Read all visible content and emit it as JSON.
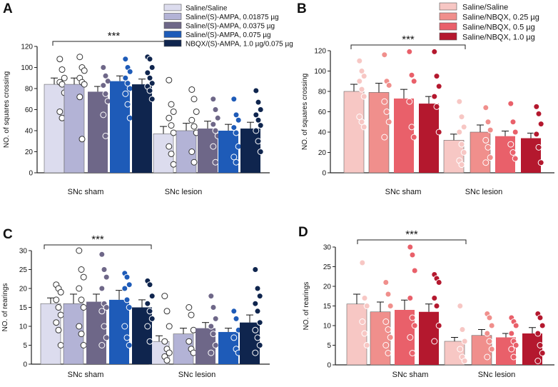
{
  "figure": {
    "legend_a": [
      "Saline/Saline",
      "Saline/(S)-AMPA, 0.01875 µg",
      "Saline/(S)-AMPA, 0.0375 µg",
      "Saline/(S)-AMPA, 0.075 µg",
      "NBQX/(S)-AMPA, 1.0 µg/0.075 µg"
    ],
    "legend_b": [
      "Saline/Saline",
      "Saline/NBQX, 0.25 µg",
      "Saline/NBQX, 0.5 µg",
      "Saline/NBQX, 1.0 µg"
    ],
    "colors_a": [
      "#dcdcee",
      "#b3b3d6",
      "#6e6788",
      "#1e5bb8",
      "#0f254e"
    ],
    "colors_b": [
      "#f7c7c4",
      "#f08f8c",
      "#e9606a",
      "#b4182e"
    ]
  },
  "chart_data": [
    {
      "panel": "A",
      "type": "bar",
      "ylabel": "NO. of squares crossing",
      "ylim": [
        0,
        120
      ],
      "yticks": [
        0,
        20,
        40,
        60,
        80,
        100,
        120
      ],
      "categories": [
        "SNc sham",
        "SNc lesion"
      ],
      "significance": "***",
      "series": [
        {
          "name": "Saline/Saline",
          "values": [
            84,
            37
          ],
          "errors": [
            6,
            7
          ],
          "points": [
            [
              108,
              98,
              90,
              86,
              84,
              76,
              58,
              52
            ],
            [
              88,
              65,
              58,
              52,
              45,
              38,
              25,
              18,
              8
            ]
          ]
        },
        {
          "name": "Saline/(S)-AMPA, 0.01875 µg",
          "values": [
            84,
            40
          ],
          "errors": [
            6,
            7
          ],
          "points": [
            [
              110,
              100,
              97,
              90,
              86,
              84,
              72,
              32
            ],
            [
              79,
              70,
              58,
              50,
              44,
              38,
              20,
              10
            ]
          ]
        },
        {
          "name": "Saline/(S)-AMPA, 0.0375 µg",
          "values": [
            77,
            42
          ],
          "errors": [
            5,
            7
          ],
          "points": [
            [
              100,
              92,
              87,
              83,
              75,
              68,
              55,
              35
            ],
            [
              70,
              60,
              52,
              46,
              40,
              35,
              25,
              10
            ]
          ]
        },
        {
          "name": "Saline/(S)-AMPA, 0.075 µg",
          "values": [
            87,
            40
          ],
          "errors": [
            5,
            6
          ],
          "points": [
            [
              108,
              100,
              96,
              90,
              85,
              80,
              75,
              65,
              52
            ],
            [
              70,
              55,
              50,
              43,
              38,
              25,
              15,
              10
            ]
          ]
        },
        {
          "name": "NBQX/(S)-AMPA, 1.0 µg/0.075 µg",
          "values": [
            84,
            42
          ],
          "errors": [
            5,
            6
          ],
          "points": [
            [
              110,
              108,
              100,
              95,
              90,
              85,
              82,
              78,
              70
            ],
            [
              78,
              67,
              60,
              55,
              50,
              45,
              40,
              30,
              20
            ]
          ]
        }
      ]
    },
    {
      "panel": "B",
      "type": "bar",
      "ylabel": "NO. of squares crossing",
      "ylim": [
        0,
        120
      ],
      "yticks": [
        0,
        20,
        40,
        60,
        80,
        100,
        120
      ],
      "categories": [
        "SNc sham",
        "SNc lesion"
      ],
      "significance": "***",
      "series": [
        {
          "name": "Saline/Saline",
          "values": [
            80,
            32
          ],
          "errors": [
            7,
            6
          ],
          "points": [
            [
              110,
              100,
              95,
              90,
              82,
              75,
              55,
              50,
              45
            ],
            [
              70,
              55,
              45,
              40,
              28,
              20,
              12,
              8
            ]
          ]
        },
        {
          "name": "Saline/NBQX, 0.25 µg",
          "values": [
            79,
            40
          ],
          "errors": [
            9,
            7
          ],
          "points": [
            [
              116,
              90,
              86,
              70,
              60,
              50,
              35
            ],
            [
              64,
              50,
              42,
              32,
              25,
              15,
              10
            ]
          ]
        },
        {
          "name": "Saline/NBQX, 0.5 µg",
          "values": [
            73,
            36
          ],
          "errors": [
            9,
            5
          ],
          "points": [
            [
              119,
              96,
              90,
              70,
              45,
              35
            ],
            [
              68,
              50,
              40,
              28,
              20,
              14
            ]
          ]
        },
        {
          "name": "Saline/NBQX, 1.0 µg",
          "values": [
            68,
            34
          ],
          "errors": [
            7,
            5
          ],
          "points": [
            [
              119,
              95,
              85,
              75,
              65,
              40
            ],
            [
              65,
              58,
              48,
              38,
              25,
              10
            ]
          ]
        }
      ]
    },
    {
      "panel": "C",
      "type": "bar",
      "ylabel": "NO. of rearings",
      "ylim": [
        0,
        30
      ],
      "yticks": [
        0,
        5,
        10,
        15,
        20,
        25,
        30
      ],
      "categories": [
        "SNc sham",
        "SNc lesion"
      ],
      "significance": "***",
      "series": [
        {
          "name": "Saline/Saline",
          "values": [
            16,
            6
          ],
          "errors": [
            1.5,
            1.5
          ],
          "points": [
            [
              21,
              20,
              19,
              17,
              15,
              13,
              11,
              9,
              5
            ],
            [
              18,
              14,
              10,
              6,
              4,
              3,
              2,
              1
            ]
          ]
        },
        {
          "name": "Saline/(S)-AMPA, 0.01875 µg",
          "values": [
            16,
            8
          ],
          "errors": [
            2.5,
            1.5
          ],
          "points": [
            [
              30,
              25,
              23,
              20,
              17,
              15,
              10,
              8,
              5
            ],
            [
              15,
              13,
              9,
              6,
              4,
              3
            ]
          ]
        },
        {
          "name": "Saline/(S)-AMPA, 0.0375 µg",
          "values": [
            16.5,
            9.5
          ],
          "errors": [
            2,
            1.5
          ],
          "points": [
            [
              29,
              25,
              23,
              20,
              16,
              15,
              14,
              10,
              7,
              5
            ],
            [
              18,
              15,
              12,
              10,
              8,
              5,
              3
            ]
          ]
        },
        {
          "name": "Saline/(S)-AMPA, 0.075 µg",
          "values": [
            17,
            8.5
          ],
          "errors": [
            2.5,
            1
          ],
          "points": [
            [
              24,
              23,
              21,
              20,
              17,
              15,
              10,
              7,
              5
            ],
            [
              14,
              12,
              9,
              7,
              4,
              3
            ]
          ]
        },
        {
          "name": "NBQX/(S)-AMPA, 1.0 µg/0.075 µg",
          "values": [
            15,
            11
          ],
          "errors": [
            2,
            2
          ],
          "points": [
            [
              22,
              21,
              18,
              16,
              14,
              12,
              10,
              6
            ],
            [
              25,
              20,
              18,
              16,
              14,
              11,
              9,
              7,
              5,
              3
            ]
          ]
        }
      ]
    },
    {
      "panel": "D",
      "type": "bar",
      "ylabel": "NO. of rearings",
      "ylim": [
        0,
        30
      ],
      "yticks": [
        0,
        5,
        10,
        15,
        20,
        25,
        30
      ],
      "categories": [
        "SNc sham",
        "SNc lesion"
      ],
      "significance": "***",
      "series": [
        {
          "name": "Saline/Saline",
          "values": [
            15.5,
            6
          ],
          "errors": [
            2.5,
            1
          ],
          "points": [
            [
              26,
              17,
              15,
              11,
              8,
              5
            ],
            [
              15,
              9,
              6,
              4,
              2,
              1
            ]
          ]
        },
        {
          "name": "Saline/NBQX, 0.25 µg",
          "values": [
            13.5,
            7.5
          ],
          "errors": [
            2.5,
            1.5
          ],
          "points": [
            [
              21,
              18,
              15,
              11,
              9,
              7,
              5,
              3
            ],
            [
              13,
              12,
              10,
              8,
              6,
              4,
              2
            ]
          ]
        },
        {
          "name": "Saline/NBQX, 0.5 µg",
          "values": [
            14,
            7
          ],
          "errors": [
            2.5,
            1
          ],
          "points": [
            [
              30,
              28,
              24,
              17,
              12,
              10,
              7,
              3
            ],
            [
              12,
              11,
              10,
              8,
              6,
              5,
              4,
              2
            ]
          ]
        },
        {
          "name": "Saline/NBQX, 1.0 µg",
          "values": [
            13.5,
            8
          ],
          "errors": [
            2,
            1.5
          ],
          "points": [
            [
              23,
              22,
              21,
              17,
              15,
              10,
              6
            ],
            [
              13,
              12,
              10,
              8,
              5,
              3,
              1
            ]
          ]
        }
      ]
    }
  ]
}
